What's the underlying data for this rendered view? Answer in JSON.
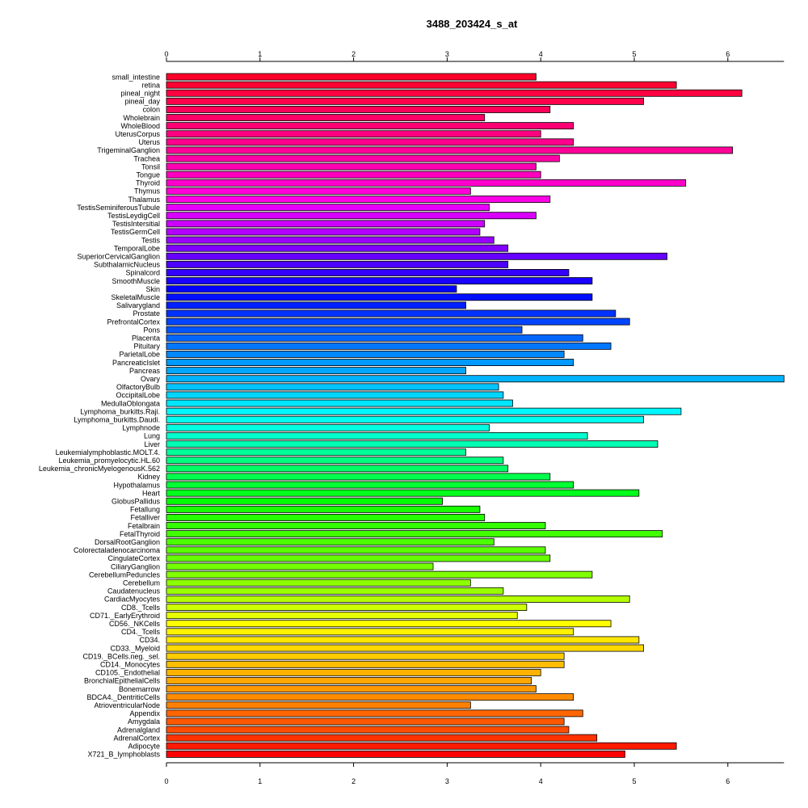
{
  "chart_data": {
    "type": "bar",
    "orientation": "horizontal",
    "title": "3488_203424_s_at",
    "xlabel": "",
    "ylabel": "",
    "xlim": [
      0,
      6.6
    ],
    "x_ticks": [
      0,
      1,
      2,
      3,
      4,
      5,
      6
    ],
    "grid": false,
    "categories": [
      "small_intestine",
      "retina",
      "pineal_night",
      "pineal_day",
      "colon",
      "Wholebrain",
      "WholeBlood",
      "UterusCorpus",
      "Uterus",
      "TrigeminalGanglion",
      "Trachea",
      "Tonsil",
      "Tongue",
      "Thyroid",
      "Thymus",
      "Thalamus",
      "TestisSeminiferousTubule",
      "TestisLeydigCell",
      "TestisIntersitial",
      "TestisGermCell",
      "Testis",
      "TemporalLobe",
      "SuperiorCervicalGanglion",
      "SubthalamicNucleus",
      "Spinalcord",
      "SmoothMuscle",
      "Skin",
      "SkeletalMuscle",
      "Salivarygland",
      "Prostate",
      "PrefrontalCortex",
      "Pons",
      "Placenta",
      "Pituitary",
      "ParietalLobe",
      "PancreaticIslet",
      "Pancreas",
      "Ovary",
      "OlfactoryBulb",
      "OccipitalLobe",
      "MedullaOblongata",
      "Lymphoma_burkitts.Raji.",
      "Lymphoma_burkitts.Daudi.",
      "Lymphnode",
      "Lung",
      "Liver",
      "Leukemialymphoblastic.MOLT.4.",
      "Leukemia_promyelocytic.HL.60",
      "Leukemia_chronicMyelogenousK.562",
      "Kidney",
      "Hypothalamus",
      "Heart",
      "GlobusPallidus",
      "Fetallung",
      "Fetalliver",
      "Fetalbrain",
      "FetalThyroid",
      "DorsalRootGanglion",
      "Colorectaladenocarcinoma",
      "CingulateCortex",
      "CiliaryGanglion",
      "CerebellumPeduncles",
      "Cerebellum",
      "Caudatenucleus",
      "CardiacMyocytes",
      "CD8._Tcells",
      "CD71._EarlyErythroid",
      "CD56._NKCells",
      "CD4._Tcells",
      "CD34.",
      "CD33._Myeloid",
      "CD19._BCells.neg._sel.",
      "CD14._Monocytes",
      "CD105._Endothelial",
      "BronchialEpithelialCells",
      "Bonemarrow",
      "BDCA4._DentriticCells",
      "AtrioventricularNode",
      "Appendix",
      "Amygdala",
      "Adrenalgland",
      "AdrenalCortex",
      "Adipocyte",
      "X721_B_lymphoblasts"
    ],
    "values": [
      3.95,
      5.45,
      6.15,
      5.1,
      4.1,
      3.4,
      4.35,
      4.0,
      4.35,
      6.05,
      4.2,
      3.95,
      4.0,
      5.55,
      3.25,
      4.1,
      3.45,
      3.95,
      3.4,
      3.35,
      3.5,
      3.65,
      5.35,
      3.65,
      4.3,
      4.55,
      3.1,
      4.55,
      3.2,
      4.8,
      4.95,
      3.8,
      4.45,
      4.75,
      4.25,
      4.35,
      3.2,
      6.6,
      3.55,
      3.6,
      3.7,
      5.5,
      5.1,
      3.45,
      4.5,
      5.25,
      3.2,
      3.6,
      3.65,
      4.1,
      4.35,
      5.05,
      2.95,
      3.35,
      3.4,
      4.05,
      5.3,
      3.5,
      4.05,
      4.1,
      2.85,
      4.55,
      3.25,
      3.6,
      4.95,
      3.85,
      3.75,
      4.75,
      4.35,
      5.05,
      5.1,
      4.25,
      4.25,
      4.0,
      3.9,
      3.95,
      4.35,
      3.25,
      4.45,
      4.25,
      4.3,
      4.6,
      5.45,
      4.9
    ],
    "colors": [
      "#ff0029",
      "#ff0033",
      "#ff0040",
      "#ff004c",
      "#ff0059",
      "#ff0066",
      "#ff0073",
      "#ff0080",
      "#ff008c",
      "#ff0099",
      "#ff00a6",
      "#ff00b3",
      "#ff00bf",
      "#ff00cc",
      "#ff00d9",
      "#ff00e6",
      "#e600ff",
      "#d900ff",
      "#cc00ff",
      "#b300ff",
      "#9900ff",
      "#8000ff",
      "#6600ff",
      "#4c00ff",
      "#3300ff",
      "#1a00ff",
      "#0000ff",
      "#0010ff",
      "#0020ff",
      "#0033ff",
      "#0044ff",
      "#0055ff",
      "#0066ff",
      "#0077ff",
      "#0088ff",
      "#0099ff",
      "#00a6ff",
      "#00b3ff",
      "#00c4ff",
      "#00d5ff",
      "#00e6ff",
      "#00f7ff",
      "#00fff0",
      "#00ffe0",
      "#00ffcc",
      "#00ffb3",
      "#00ff99",
      "#00ff80",
      "#00ff66",
      "#00ff4c",
      "#00ff33",
      "#00ff1a",
      "#00ff00",
      "#1aff00",
      "#26ff00",
      "#33ff00",
      "#40ff00",
      "#4cff00",
      "#59ff00",
      "#66ff00",
      "#73ff00",
      "#80ff00",
      "#8cff00",
      "#99ff00",
      "#b3ff00",
      "#ccff00",
      "#e6ff00",
      "#ffff00",
      "#fff200",
      "#ffe600",
      "#ffd900",
      "#ffcc00",
      "#ffbf00",
      "#ffb300",
      "#ffa600",
      "#ff9900",
      "#ff8c00",
      "#ff8000",
      "#ff6600",
      "#ff5900",
      "#ff4c00",
      "#ff3300",
      "#ff1a00",
      "#ff0000"
    ]
  }
}
